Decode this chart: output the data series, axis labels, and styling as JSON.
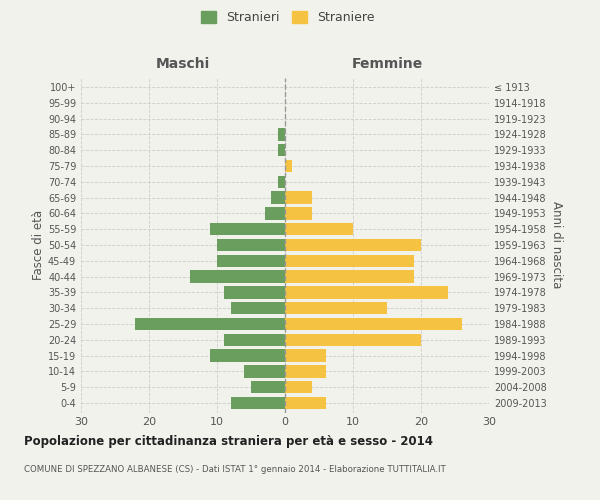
{
  "age_groups": [
    "0-4",
    "5-9",
    "10-14",
    "15-19",
    "20-24",
    "25-29",
    "30-34",
    "35-39",
    "40-44",
    "45-49",
    "50-54",
    "55-59",
    "60-64",
    "65-69",
    "70-74",
    "75-79",
    "80-84",
    "85-89",
    "90-94",
    "95-99",
    "100+"
  ],
  "birth_years": [
    "2009-2013",
    "2004-2008",
    "1999-2003",
    "1994-1998",
    "1989-1993",
    "1984-1988",
    "1979-1983",
    "1974-1978",
    "1969-1973",
    "1964-1968",
    "1959-1963",
    "1954-1958",
    "1949-1953",
    "1944-1948",
    "1939-1943",
    "1934-1938",
    "1929-1933",
    "1924-1928",
    "1919-1923",
    "1914-1918",
    "≤ 1913"
  ],
  "males": [
    8,
    5,
    6,
    11,
    9,
    22,
    8,
    9,
    14,
    10,
    10,
    11,
    3,
    2,
    1,
    0,
    1,
    1,
    0,
    0,
    0
  ],
  "females": [
    6,
    4,
    6,
    6,
    20,
    26,
    15,
    24,
    19,
    19,
    20,
    10,
    4,
    4,
    0,
    1,
    0,
    0,
    0,
    0,
    0
  ],
  "male_color": "#6a9e5e",
  "female_color": "#f5c242",
  "background_color": "#f2f2ed",
  "grid_color": "#cccccc",
  "title": "Popolazione per cittadinanza straniera per età e sesso - 2014",
  "subtitle": "COMUNE DI SPEZZANO ALBANESE (CS) - Dati ISTAT 1° gennaio 2014 - Elaborazione TUTTITALIA.IT",
  "ylabel_left": "Fasce di età",
  "ylabel_right": "Anni di nascita",
  "header_left": "Maschi",
  "header_right": "Femmine",
  "legend_male": "Stranieri",
  "legend_female": "Straniere",
  "xlim": 30,
  "bar_height": 0.78
}
